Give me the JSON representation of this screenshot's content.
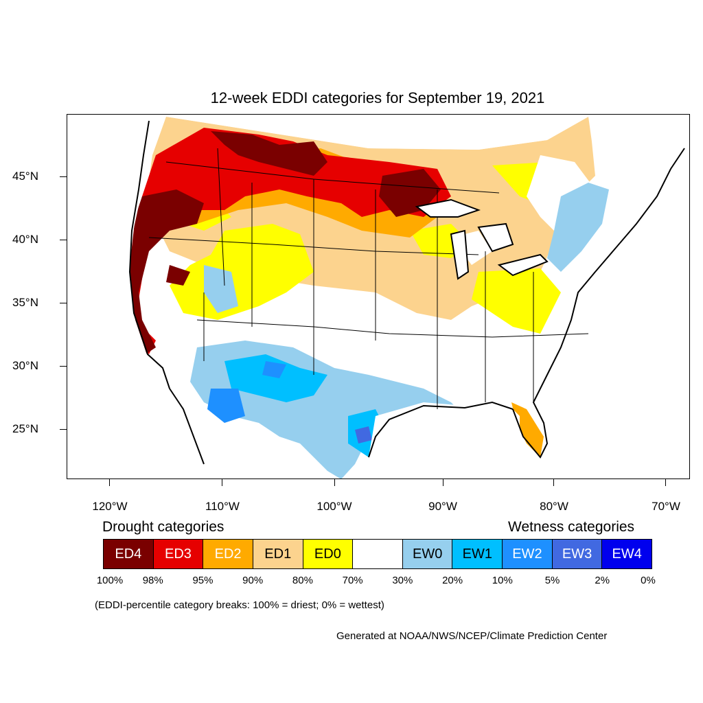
{
  "title": "12-week EDDI categories for September 19, 2021",
  "latitude_labels": [
    "45°N",
    "40°N",
    "35°N",
    "30°N",
    "25°N"
  ],
  "longitude_labels": [
    "120°W",
    "110°W",
    "100°W",
    "90°W",
    "80°W",
    "70°W"
  ],
  "legend": {
    "drought_heading": "Drought categories",
    "wetness_heading": "Wetness categories",
    "categories": [
      {
        "label": "ED4",
        "color": "#7a0000",
        "text_color": "#ffffff"
      },
      {
        "label": "ED3",
        "color": "#e60000",
        "text_color": "#ffffff"
      },
      {
        "label": "ED2",
        "color": "#ffaa00",
        "text_color": "#ffffff"
      },
      {
        "label": "ED1",
        "color": "#fcd38e",
        "text_color": "#000000"
      },
      {
        "label": "ED0",
        "color": "#ffff00",
        "text_color": "#000000"
      },
      {
        "label": "",
        "color": "#ffffff",
        "text_color": "#000000"
      },
      {
        "label": "EW0",
        "color": "#96cfee",
        "text_color": "#000000"
      },
      {
        "label": "EW1",
        "color": "#00bfff",
        "text_color": "#000000"
      },
      {
        "label": "EW2",
        "color": "#1e90ff",
        "text_color": "#ffffff"
      },
      {
        "label": "EW3",
        "color": "#4169e1",
        "text_color": "#ffffff"
      },
      {
        "label": "EW4",
        "color": "#0000ee",
        "text_color": "#ffffff"
      }
    ],
    "breaks": [
      "100%",
      "98%",
      "95%",
      "90%",
      "80%",
      "70%",
      "30%",
      "20%",
      "10%",
      "5%",
      "2%",
      "0%"
    ]
  },
  "note": "(EDDI-percentile category breaks: 100% = driest; 0% = wettest)",
  "credit": "Generated at NOAA/NWS/NCEP/Climate Prediction Center"
}
